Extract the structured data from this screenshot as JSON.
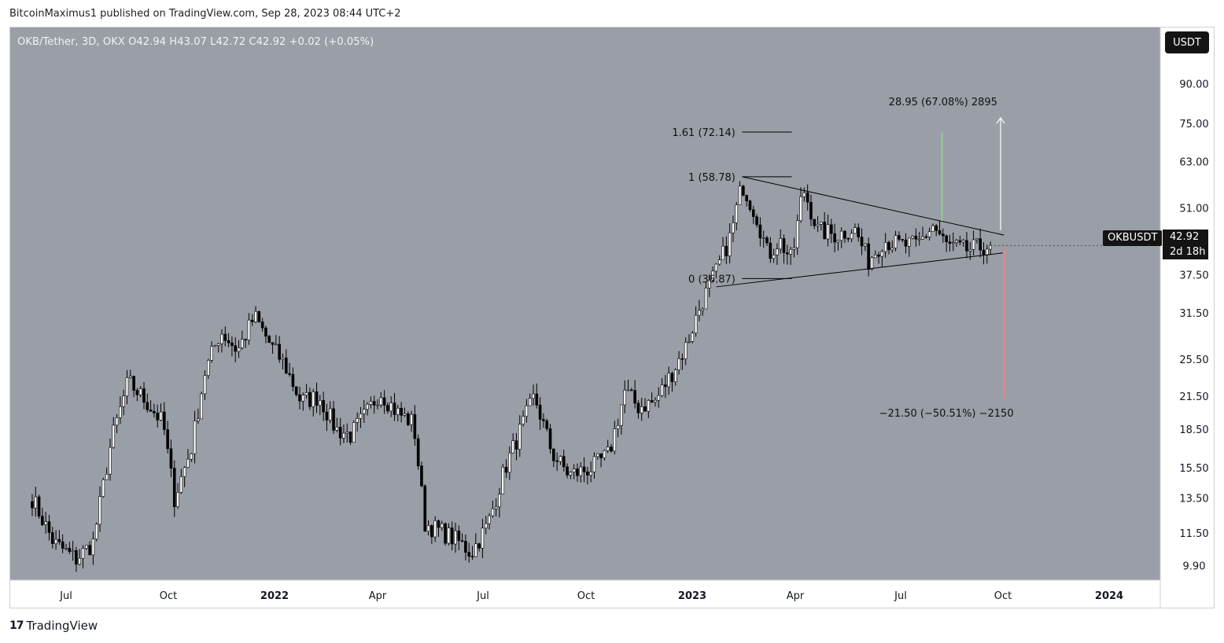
{
  "header": {
    "publisher_line": "BitcoinMaximus1 published on TradingView.com, Sep 28, 2023 08:44 UTC+2"
  },
  "legend": {
    "text": "OKB/Tether, 3D, OKX  O42.94  H43.07  L42.72  C42.92  +0.02 (+0.05%)"
  },
  "currency_button": "USDT",
  "symbol_tag": "OKBUSDT",
  "last_price": "42.92",
  "countdown": "2d 18h",
  "footer": {
    "brand": "TradingView"
  },
  "colors": {
    "background": "#9a9ea7",
    "candle": "#ffffff",
    "candle_border": "#000000",
    "target_up": "#8fd18f",
    "target_down": "#d98a8a"
  },
  "chart_data": {
    "type": "candlestick",
    "symbol": "OKB/Tether",
    "timeframe": "3D",
    "exchange": "OKX",
    "y_scale": "log",
    "y_ticks": [
      "90.00",
      "75.00",
      "63.00",
      "51.00",
      "42.92",
      "37.50",
      "31.50",
      "25.50",
      "21.50",
      "18.50",
      "15.50",
      "13.50",
      "11.50",
      "9.90"
    ],
    "x_ticks": [
      "Jul",
      "Oct",
      "2022",
      "Apr",
      "Jul",
      "Oct",
      "2023",
      "Apr",
      "Jul",
      "Oct",
      "2024"
    ],
    "ohlc_last": {
      "open": 42.94,
      "high": 43.07,
      "low": 42.72,
      "close": 42.92,
      "change": "+0.02 (+0.05%)"
    },
    "close_series": [
      [
        "2021-06-01",
        13.5
      ],
      [
        "2021-06-20",
        11.0
      ],
      [
        "2021-07-10",
        10.2
      ],
      [
        "2021-07-25",
        11.0
      ],
      [
        "2021-08-10",
        17.5
      ],
      [
        "2021-08-25",
        23.0
      ],
      [
        "2021-09-10",
        21.0
      ],
      [
        "2021-09-25",
        19.0
      ],
      [
        "2021-10-05",
        13.5
      ],
      [
        "2021-10-20",
        17.0
      ],
      [
        "2021-11-01",
        24.0
      ],
      [
        "2021-11-15",
        29.0
      ],
      [
        "2021-11-30",
        26.5
      ],
      [
        "2021-12-15",
        31.0
      ],
      [
        "2021-12-30",
        27.0
      ],
      [
        "2022-01-10",
        25.0
      ],
      [
        "2022-01-25",
        21.0
      ],
      [
        "2022-02-10",
        21.5
      ],
      [
        "2022-02-25",
        18.5
      ],
      [
        "2022-03-10",
        18.0
      ],
      [
        "2022-03-25",
        20.0
      ],
      [
        "2022-04-05",
        22.0
      ],
      [
        "2022-04-20",
        20.0
      ],
      [
        "2022-05-05",
        19.0
      ],
      [
        "2022-05-15",
        12.0
      ],
      [
        "2022-06-01",
        11.5
      ],
      [
        "2022-06-15",
        11.0
      ],
      [
        "2022-06-25",
        10.5
      ],
      [
        "2022-07-10",
        12.0
      ],
      [
        "2022-07-25",
        15.5
      ],
      [
        "2022-08-10",
        19.0
      ],
      [
        "2022-08-20",
        21.5
      ],
      [
        "2022-09-05",
        16.5
      ],
      [
        "2022-09-20",
        15.0
      ],
      [
        "2022-10-10",
        15.5
      ],
      [
        "2022-10-25",
        16.5
      ],
      [
        "2022-11-08",
        22.0
      ],
      [
        "2022-11-20",
        20.5
      ],
      [
        "2022-12-05",
        21.0
      ],
      [
        "2022-12-20",
        24.0
      ],
      [
        "2023-01-01",
        27.0
      ],
      [
        "2023-01-15",
        33.0
      ],
      [
        "2023-01-28",
        38.0
      ],
      [
        "2023-02-10",
        45.0
      ],
      [
        "2023-02-20",
        57.0
      ],
      [
        "2023-03-05",
        49.0
      ],
      [
        "2023-03-15",
        41.0
      ],
      [
        "2023-03-25",
        44.0
      ],
      [
        "2023-04-05",
        40.0
      ],
      [
        "2023-04-15",
        56.0
      ],
      [
        "2023-04-28",
        46.0
      ],
      [
        "2023-05-15",
        45.0
      ],
      [
        "2023-05-30",
        46.5
      ],
      [
        "2023-06-12",
        40.0
      ],
      [
        "2023-06-25",
        44.0
      ],
      [
        "2023-07-10",
        43.0
      ],
      [
        "2023-07-25",
        43.0
      ],
      [
        "2023-08-08",
        47.0
      ],
      [
        "2023-08-20",
        43.0
      ],
      [
        "2023-09-05",
        42.0
      ],
      [
        "2023-09-28",
        42.92
      ]
    ],
    "annotations": {
      "triangle_upper": [
        [
          "2023-02-20",
          58.78
        ],
        [
          "2023-10-10",
          45.0
        ]
      ],
      "triangle_lower": [
        [
          "2023-01-28",
          35.5
        ],
        [
          "2023-10-10",
          41.5
        ]
      ],
      "fib_levels": [
        {
          "label": "1.61 (72.14)",
          "value": 72.14
        },
        {
          "label": "1 (58.78)",
          "value": 58.78
        },
        {
          "label": "0 (36.87)",
          "value": 36.87
        }
      ],
      "target_up_label": "28.95 (67.08%) 2895",
      "target_down_label": "−21.50 (−50.51%) −2150"
    }
  }
}
